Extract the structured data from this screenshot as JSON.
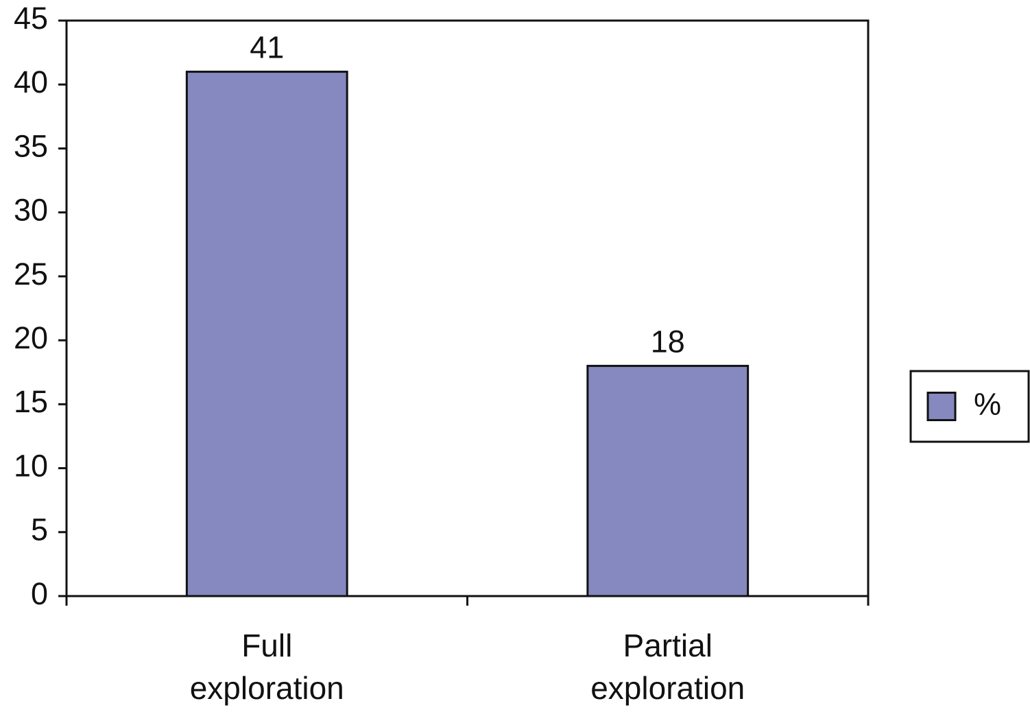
{
  "chart_data": {
    "type": "bar",
    "categories": [
      "Full exploration",
      "Partial exploration"
    ],
    "series": [
      {
        "name": "%",
        "color": "#8589c0",
        "values": [
          41,
          18
        ]
      }
    ],
    "ylim": [
      0,
      45
    ],
    "yticks": [
      0,
      5,
      10,
      15,
      20,
      25,
      30,
      35,
      40,
      45
    ],
    "grid": false,
    "legend": "right"
  }
}
